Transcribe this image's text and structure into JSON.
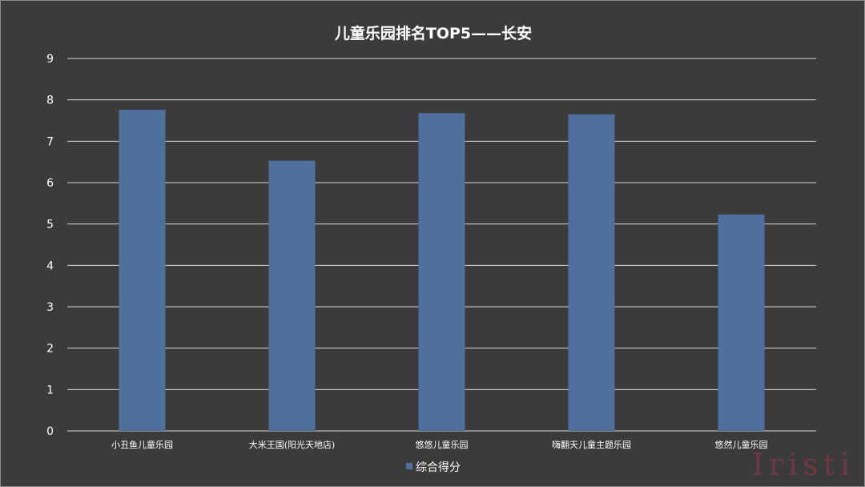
{
  "chart_data": {
    "type": "bar",
    "title": "儿童乐园排名TOP5——长安",
    "categories": [
      "小丑鱼儿童乐园",
      "大米王国(阳光天地店)",
      "悠悠儿童乐园",
      "嗨翻天儿童主题乐园",
      "悠然儿童乐园"
    ],
    "series": [
      {
        "name": "综合得分",
        "values": [
          7.76,
          6.53,
          7.68,
          7.65,
          5.23
        ]
      }
    ],
    "ylim": [
      0,
      9
    ],
    "yticks": [
      0,
      1,
      2,
      3,
      4,
      5,
      6,
      7,
      8,
      9
    ],
    "grid": true,
    "legend_position": "bottom",
    "colors": {
      "background": "#3b3b3b",
      "bar": "#4f6f9c",
      "gridline": "#d9d9d9",
      "text": "#ffffff"
    }
  },
  "watermark": "Iristi"
}
